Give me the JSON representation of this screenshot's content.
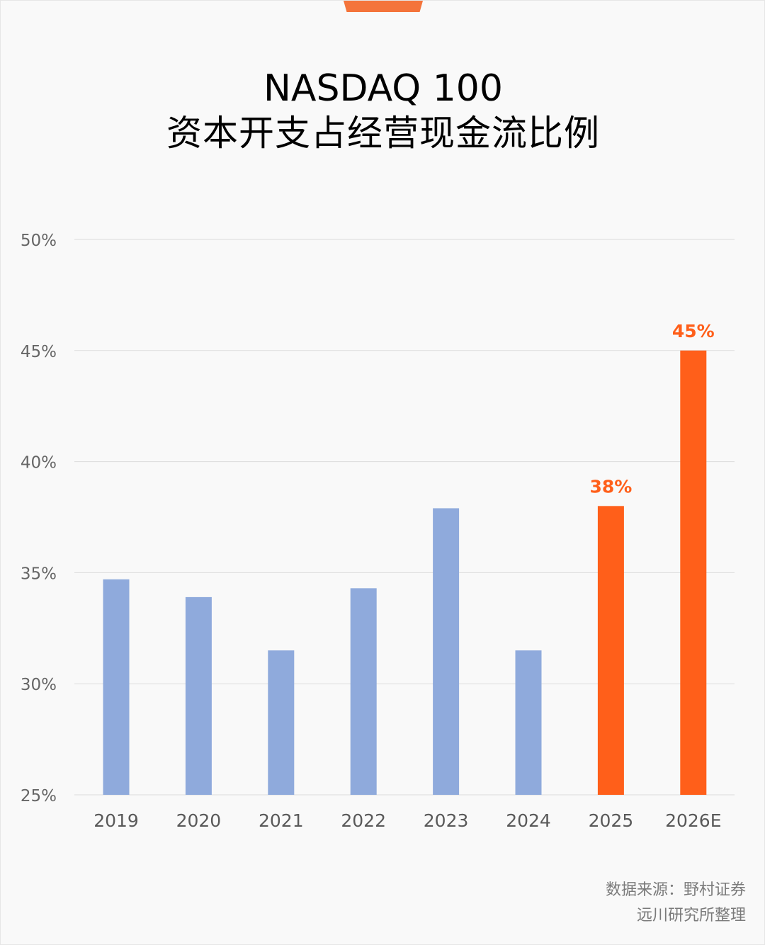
{
  "title": {
    "line1": "NASDAQ 100",
    "line2": "资本开支占经营现金流比例"
  },
  "source": {
    "line1": "数据来源：野村证券",
    "line2": "远川研究所整理"
  },
  "colors": {
    "historical": "#8faadc",
    "forecast": "#ff5f1a",
    "accent_tab": "#f4743b",
    "grid": "#dcdcdc",
    "axis_text": "#595959"
  },
  "chart_data": {
    "type": "bar",
    "categories": [
      "2019",
      "2020",
      "2021",
      "2022",
      "2023",
      "2024",
      "2025",
      "2026E"
    ],
    "values": [
      34.7,
      33.9,
      31.5,
      34.3,
      37.9,
      31.5,
      38,
      45
    ],
    "highlight": [
      false,
      false,
      false,
      false,
      false,
      false,
      true,
      true
    ],
    "data_labels": [
      "",
      "",
      "",
      "",
      "",
      "",
      "38%",
      "45%"
    ],
    "ylim": [
      25,
      50
    ],
    "yticks": [
      25,
      30,
      35,
      40,
      45,
      50
    ],
    "ytick_labels": [
      "25%",
      "30%",
      "35%",
      "40%",
      "45%",
      "50%"
    ],
    "grid": true,
    "legend": "none"
  }
}
